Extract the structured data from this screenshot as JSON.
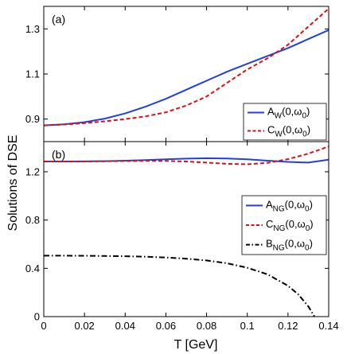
{
  "colors": {
    "blue": "#2040e0",
    "red": "#e01010",
    "black": "#000000"
  },
  "shared": {
    "ylabel": "Solutions of DSE",
    "xlabel": "T [GeV]",
    "xlim": [
      0,
      0.14
    ],
    "xticks": [
      "0",
      "0.02",
      "0.04",
      "0.06",
      "0.08",
      "0.1",
      "0.12",
      "0.14"
    ]
  },
  "chart_data": [
    {
      "type": "line",
      "panel_label": "(a)",
      "x": [
        0,
        0.01,
        0.02,
        0.03,
        0.04,
        0.05,
        0.06,
        0.07,
        0.08,
        0.09,
        0.1,
        0.11,
        0.12,
        0.13,
        0.14
      ],
      "ylim": [
        0.8,
        1.4
      ],
      "yticks": [
        "0.9",
        "1.1",
        "1.3"
      ],
      "ytick_values": [
        0.9,
        1.1,
        1.3
      ],
      "legend_position": "right",
      "series": [
        {
          "base": "A",
          "sub": "W",
          "arg": "(0,ω",
          "argsub": "0",
          "close": ")",
          "color": "#2040e0",
          "style": "solid",
          "values": [
            0.872,
            0.877,
            0.886,
            0.902,
            0.925,
            0.955,
            0.99,
            1.03,
            1.07,
            1.11,
            1.145,
            1.18,
            1.215,
            1.255,
            1.295
          ]
        },
        {
          "base": "C",
          "sub": "W",
          "arg": "(0,ω",
          "argsub": "0",
          "close": ")",
          "color": "#e01010",
          "style": "dashed",
          "values": [
            0.872,
            0.876,
            0.882,
            0.89,
            0.9,
            0.912,
            0.93,
            0.96,
            1.0,
            1.06,
            1.12,
            1.17,
            1.23,
            1.31,
            1.39
          ]
        }
      ]
    },
    {
      "type": "line",
      "panel_label": "(b)",
      "x": [
        0,
        0.01,
        0.02,
        0.03,
        0.04,
        0.05,
        0.06,
        0.07,
        0.08,
        0.09,
        0.1,
        0.11,
        0.12,
        0.13,
        0.14
      ],
      "ylim": [
        0,
        1.45
      ],
      "yticks": [
        "0",
        "0.4",
        "0.8",
        "1.2"
      ],
      "ytick_values": [
        0,
        0.4,
        0.8,
        1.2
      ],
      "legend_position": "right",
      "series": [
        {
          "base": "A",
          "sub": "NG",
          "arg": "(0,ω",
          "argsub": "0",
          "close": ")",
          "color": "#2040e0",
          "style": "solid",
          "x": [
            0,
            0.01,
            0.02,
            0.03,
            0.04,
            0.05,
            0.06,
            0.07,
            0.08,
            0.09,
            0.1,
            0.11,
            0.12,
            0.13,
            0.14
          ],
          "values": [
            1.285,
            1.285,
            1.286,
            1.288,
            1.292,
            1.297,
            1.303,
            1.309,
            1.312,
            1.31,
            1.303,
            1.292,
            1.282,
            1.276,
            1.3
          ]
        },
        {
          "base": "C",
          "sub": "NG",
          "arg": "(0,ω",
          "argsub": "0",
          "close": ")",
          "color": "#e01010",
          "style": "dashed",
          "x": [
            0,
            0.01,
            0.02,
            0.03,
            0.04,
            0.05,
            0.06,
            0.07,
            0.08,
            0.09,
            0.1,
            0.11,
            0.12,
            0.13,
            0.14
          ],
          "values": [
            1.285,
            1.285,
            1.286,
            1.287,
            1.289,
            1.291,
            1.29,
            1.285,
            1.276,
            1.266,
            1.262,
            1.274,
            1.305,
            1.35,
            1.41
          ]
        },
        {
          "base": "B",
          "sub": "NG",
          "arg": "(0,ω",
          "argsub": "0",
          "close": ")",
          "color": "#000000",
          "style": "dashdot",
          "x": [
            0,
            0.01,
            0.02,
            0.03,
            0.04,
            0.05,
            0.06,
            0.07,
            0.08,
            0.09,
            0.1,
            0.11,
            0.12,
            0.125,
            0.13,
            0.133
          ],
          "values": [
            0.505,
            0.505,
            0.504,
            0.502,
            0.5,
            0.496,
            0.49,
            0.48,
            0.465,
            0.442,
            0.405,
            0.35,
            0.255,
            0.185,
            0.085,
            0.0
          ]
        }
      ]
    }
  ]
}
